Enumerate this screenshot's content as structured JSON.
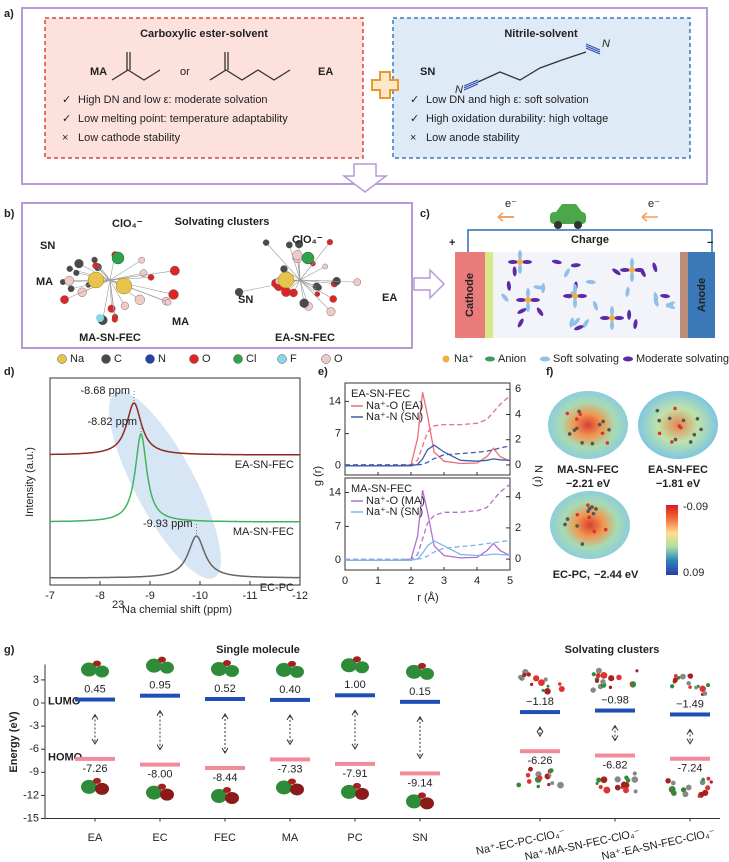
{
  "panel_a": {
    "label": "a)",
    "left": {
      "title": "Carboxylic ester-solvent",
      "ma": "MA",
      "or": "or",
      "ea": "EA",
      "items": [
        {
          "mark": "✓",
          "text": "High DN and low ε: moderate solvation"
        },
        {
          "mark": "✓",
          "text": "Low melting point:  temperature adaptability"
        },
        {
          "mark": "×",
          "text": "Low cathode stability"
        }
      ]
    },
    "right": {
      "title": "Nitrile-solvent",
      "sn": "SN",
      "atoms": [
        "N",
        "N"
      ],
      "items": [
        {
          "mark": "✓",
          "text": "Low DN and high ε: soft solvation"
        },
        {
          "mark": "✓",
          "text": "High oxidation durability: high voltage"
        },
        {
          "mark": "×",
          "text": "Low anode stability"
        }
      ]
    }
  },
  "panel_b": {
    "label": "b)",
    "title": "Solvating clusters",
    "atom_labels": [
      "SN",
      "ClO₄⁻",
      "MA",
      "MA",
      "ClO₄⁻",
      "SN",
      "EA"
    ],
    "cluster_names": [
      "MA-SN-FEC",
      "EA-SN-FEC"
    ],
    "legend": [
      {
        "name": "Na",
        "color": "#e6c34a"
      },
      {
        "name": "C",
        "color": "#4a4a4a"
      },
      {
        "name": "N",
        "color": "#2740b0"
      },
      {
        "name": "O",
        "color": "#e02424"
      },
      {
        "name": "Cl",
        "color": "#2ea34a"
      },
      {
        "name": "F",
        "color": "#86d9ea"
      },
      {
        "name": "O",
        "color": "#f2c9c9"
      }
    ]
  },
  "panel_c": {
    "label": "c)",
    "electrons": [
      "e⁻",
      "e⁻"
    ],
    "charge": "Charge",
    "plus": "+",
    "minus": "−",
    "cathode": "Cathode",
    "anode": "Anode",
    "legend": [
      {
        "name": "Na⁺",
        "color": "#f0b040"
      },
      {
        "name": "Anion",
        "color": "#3d9a5a"
      },
      {
        "name": "Soft solvating",
        "color": "#8fc0e8"
      },
      {
        "name": "Moderate solvating",
        "color": "#5a2aa8"
      }
    ]
  },
  "panel_d": {
    "type": "line",
    "label": "d)",
    "ylabel": "Intensity (a.u.)",
    "xlabel_sup": "23",
    "xlabel": "Na chemial shift (ppm)",
    "xlim": [
      -7,
      -12
    ],
    "xticks": [
      -7,
      -8,
      -9,
      -10,
      -11,
      -12
    ],
    "series": [
      {
        "name": "EA-SN-FEC",
        "color": "#8e2a22",
        "peak": -8.68,
        "peak_label": "-8.68 ppm"
      },
      {
        "name": "MA-SN-FEC",
        "color": "#3fb55a",
        "peak": -8.82,
        "peak_label": "-8.82 ppm"
      },
      {
        "name": "EC-PC",
        "color": "#666666",
        "peak": -9.93,
        "peak_label": "-9.93 ppm"
      }
    ]
  },
  "panel_e": {
    "type": "line",
    "label": "e)",
    "xlabel": "r (Å)",
    "ylabel": "g (r)",
    "y2label": "N (r)",
    "xlim": [
      0,
      5
    ],
    "xticks": [
      0,
      1,
      2,
      3,
      4,
      5
    ],
    "x": [
      0,
      0.5,
      1,
      1.5,
      2,
      2.2,
      2.35,
      2.5,
      2.7,
      3,
      3.5,
      4,
      4.3,
      4.5,
      4.7,
      5
    ],
    "plots": [
      {
        "title": "EA-SN-FEC",
        "ylim": [
          -2,
          18
        ],
        "yticks": [
          0,
          7,
          14
        ],
        "y2lim": [
          -0.8,
          6.5
        ],
        "y2ticks": [
          0,
          2,
          4,
          6
        ],
        "series": [
          {
            "name": "Na⁺-O (EA)",
            "color": "#e8707a",
            "values": [
              0,
              0,
              0,
              0,
              0.2,
              6,
              16,
              11,
              3,
              1,
              0.5,
              0.6,
              2,
              3.8,
              2,
              1
            ]
          },
          {
            "name": "Na⁺-N (SN)",
            "color": "#3a5fa8",
            "values": [
              0,
              0,
              0,
              0,
              0,
              0.3,
              1.5,
              3.5,
              4.5,
              3,
              1.2,
              1,
              1.2,
              1.5,
              1.3,
              1.2
            ]
          },
          {
            "color": "#e8707a",
            "axis": "y2",
            "dashed": true,
            "values": [
              0,
              0,
              0,
              0,
              0,
              0.4,
              1.5,
              2.6,
              3.1,
              3.2,
              3.2,
              3.3,
              3.6,
              4.2,
              4.8,
              5.5
            ]
          },
          {
            "color": "#3a5fa8",
            "axis": "y2",
            "dashed": true,
            "values": [
              0,
              0,
              0,
              0,
              0,
              0,
              0.05,
              0.2,
              0.5,
              0.8,
              0.9,
              1,
              1.1,
              1.2,
              1.35,
              1.5
            ]
          }
        ]
      },
      {
        "title": "MA-SN-FEC",
        "ylim": [
          -2,
          17
        ],
        "yticks": [
          0,
          7,
          14
        ],
        "y2lim": [
          -0.7,
          5.2
        ],
        "y2ticks": [
          0,
          2,
          4
        ],
        "series": [
          {
            "name": "Na⁺-O (MA)",
            "color": "#b070d0",
            "values": [
              0,
              0,
              0,
              0,
              0.2,
              5,
              14.5,
              10,
              3,
              1,
              0.5,
              0.6,
              2,
              3.5,
              2,
              1
            ]
          },
          {
            "name": "Na⁺-N (SN)",
            "color": "#7fb6e6",
            "values": [
              0,
              0,
              0,
              0,
              0,
              0.3,
              1.5,
              3,
              4,
              3,
              1.2,
              1,
              1.1,
              1.3,
              1.2,
              1.1
            ]
          },
          {
            "color": "#b070d0",
            "axis": "y2",
            "dashed": true,
            "values": [
              0,
              0,
              0,
              0,
              0,
              0.3,
              1.3,
              2.3,
              2.8,
              3,
              3,
              3.1,
              3.3,
              3.8,
              4.3,
              4.8
            ]
          },
          {
            "color": "#7fb6e6",
            "axis": "y2",
            "dashed": true,
            "values": [
              0,
              0,
              0,
              0,
              0,
              0,
              0.05,
              0.2,
              0.45,
              0.7,
              0.8,
              0.9,
              1,
              1.05,
              1.1,
              1.2
            ]
          }
        ]
      }
    ]
  },
  "panel_f": {
    "label": "f)",
    "clusters": [
      {
        "name": "MA-SN-FEC",
        "energy": "−2.21 eV"
      },
      {
        "name": "EA-SN-FEC",
        "energy": "−1.81 eV"
      },
      {
        "name": "EC-PC,",
        "energy": "−2.44 eV"
      }
    ],
    "colorbar": [
      "-0.09",
      "0.09"
    ]
  },
  "panel_g": {
    "type": "bar",
    "label": "g)",
    "ylabel": "Energy (eV)",
    "group_titles": [
      "Single molecule",
      "Solvating clusters"
    ],
    "ylim": [
      -15,
      5
    ],
    "yticks": [
      3,
      0,
      -3,
      -6,
      -9,
      -12,
      -15
    ],
    "categories": [
      "EA",
      "EC",
      "FEC",
      "MA",
      "PC",
      "SN",
      "Na⁺-EC-PC-ClO₄⁻",
      "Na⁺-MA-SN-FEC-ClO₄⁻",
      "Na⁺-EA-SN-FEC-ClO₄⁻"
    ],
    "series": [
      {
        "name": "LUMO",
        "color": "#1f4fb5",
        "values": [
          0.45,
          0.95,
          0.52,
          0.4,
          1.0,
          0.15,
          -1.18,
          -0.98,
          -1.49
        ],
        "value_labels": [
          "0.45",
          "0.95",
          "0.52",
          "0.40",
          "1.00",
          "0.15",
          "−1.18",
          "−0.98",
          "−1.49"
        ]
      },
      {
        "name": "HOMO",
        "color": "#f28b98",
        "values": [
          -7.26,
          -8.0,
          -8.44,
          -7.33,
          -7.91,
          -9.14,
          -6.26,
          -6.82,
          -7.24
        ],
        "value_labels": [
          "-7.26",
          "-8.00",
          "-8.44",
          "-7.33",
          "-7.91",
          "-9.14",
          "-6.26",
          "-6.82",
          "-7.24"
        ]
      }
    ]
  }
}
